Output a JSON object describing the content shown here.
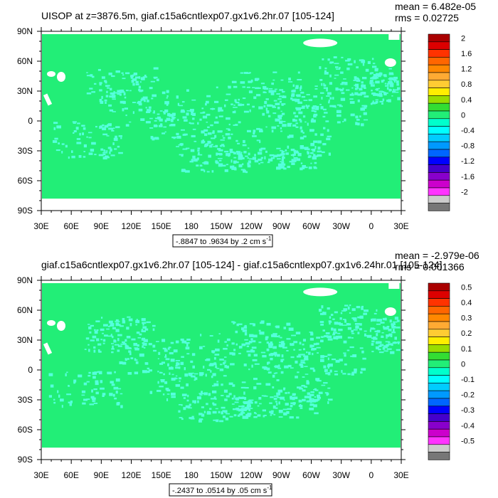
{
  "chart_data": [
    {
      "type": "heatmap",
      "title": "UISOP at z=3876.5m, giaf.c15a6cntlexp07.gx1v6.2hr.07 [105-124]",
      "mean_text": "mean = 6.482e-05",
      "rms_text": "rms = 0.02725",
      "range_text": "-.8847 to .9634 by .2 cm s",
      "range_sup": "-1",
      "x_ticks": [
        "30E",
        "60E",
        "90E",
        "120E",
        "150E",
        "180",
        "150W",
        "120W",
        "90W",
        "60W",
        "30W",
        "0",
        "30E"
      ],
      "y_ticks": [
        "90N",
        "60N",
        "30N",
        "0",
        "30S",
        "60S",
        "90S"
      ],
      "colorbar_labels": [
        "2",
        "1.6",
        "1.2",
        "0.8",
        "0.4",
        "0",
        "-0.4",
        "-0.8",
        "-1.2",
        "-1.6",
        "-2"
      ]
    },
    {
      "type": "heatmap",
      "title": "giaf.c15a6cntlexp07.gx1v6.2hr.07 [105-124] - giaf.c15a6cntlexp07.gx1v6.24hr.01 [105-124]",
      "mean_text": "mean = -2.979e-06",
      "rms_text": "rms = 0.001366",
      "range_text": "-.2437 to .0514 by .05 cm s",
      "range_sup": "-1",
      "x_ticks": [
        "30E",
        "60E",
        "90E",
        "120E",
        "150E",
        "180",
        "150W",
        "120W",
        "90W",
        "60W",
        "30W",
        "0",
        "30E"
      ],
      "y_ticks": [
        "90N",
        "60N",
        "30N",
        "0",
        "30S",
        "60S",
        "90S"
      ],
      "colorbar_labels": [
        "0.5",
        "0.4",
        "0.3",
        "0.2",
        "0.1",
        "0",
        "-0.1",
        "-0.2",
        "-0.3",
        "-0.4",
        "-0.5"
      ]
    }
  ],
  "colors": {
    "field_green": "#22ee77",
    "anomaly_cyan": "#55ffdd",
    "land_white": "#ffffff",
    "colorbar": [
      "#aa0000",
      "#dd0000",
      "#ff3300",
      "#ff6600",
      "#ff8800",
      "#ffaa33",
      "#ffcc33",
      "#ffee00",
      "#99dd00",
      "#33dd33",
      "#22ee77",
      "#00ffcc",
      "#00ffff",
      "#00ccff",
      "#0099ff",
      "#0066ff",
      "#0000ff",
      "#4400cc",
      "#8800cc",
      "#cc00cc",
      "#ff33ff",
      "#cccccc",
      "#777777"
    ]
  }
}
